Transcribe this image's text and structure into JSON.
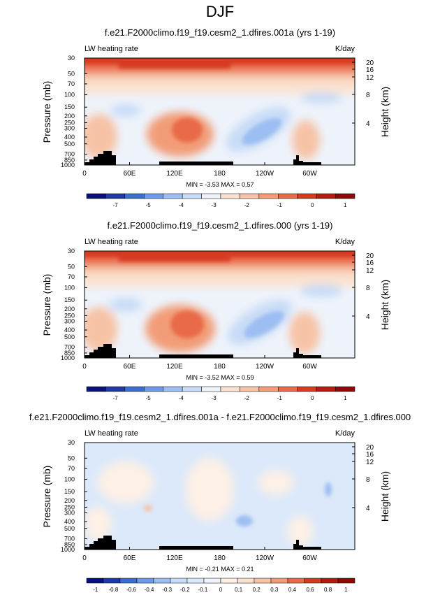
{
  "figure_title": "DJF",
  "panels": [
    {
      "title": "f.e21.F2000climo.f19_f19.cesm2_1.dfires.001a (yrs 1-19)",
      "left_label": "LW heating rate",
      "right_label": "K/day",
      "stats": "MIN = -3.53   MAX =  0.57",
      "cb_labels": [
        "-7",
        "-5",
        "-4",
        "-3",
        "-2",
        "-1",
        "0",
        "1"
      ]
    },
    {
      "title": "f.e21.F2000climo.f19_f19.cesm2_1.dfires.000 (yrs 1-19)",
      "left_label": "LW heating rate",
      "right_label": "K/day",
      "stats": "MIN = -3.52   MAX =  0.59",
      "cb_labels": [
        "-7",
        "-5",
        "-4",
        "-3",
        "-2",
        "-1",
        "0",
        "1"
      ]
    },
    {
      "title": "f.e21.F2000climo.f19_f19.cesm2_1.dfires.001a - f.e21.F2000climo.f19_f19.cesm2_1.dfires.000",
      "left_label": "LW heating rate",
      "right_label": "K/day",
      "stats": "MIN = -0.21   MAX =  0.21",
      "cb_labels": [
        "-1",
        "-0.8",
        "-0.6",
        "-0.4",
        "-0.3",
        "-0.2",
        "-0.1",
        "0",
        "0.1",
        "0.2",
        "0.3",
        "0.4",
        "0.6",
        "0.8",
        "1"
      ]
    }
  ],
  "chart_data": {
    "type": "heatmap",
    "ylabel": "Pressure (mb)",
    "y2label": "Height (km)",
    "x_ticks": [
      "0",
      "60E",
      "120E",
      "180",
      "120W",
      "60W"
    ],
    "y_ticks": [
      "30",
      "50",
      "70",
      "100",
      "150",
      "200",
      "250",
      "300",
      "400",
      "500",
      "700",
      "850",
      "1000"
    ],
    "y_tick_values": [
      30,
      50,
      70,
      100,
      150,
      200,
      250,
      300,
      400,
      500,
      700,
      850,
      1000
    ],
    "y2_ticks": [
      "20",
      "16",
      "12",
      "8",
      "4"
    ],
    "ylim": [
      1000,
      30
    ],
    "xlim": [
      0,
      360
    ],
    "colors_main": [
      "#08107a",
      "#1f3aa6",
      "#3a6fd0",
      "#6c9ae8",
      "#9cbef2",
      "#c7dcf7",
      "#eef3fb",
      "#fbe2d0",
      "#f7c3a6",
      "#f29c77",
      "#e96a4a",
      "#d63b21",
      "#b71a10",
      "#8e0906"
    ],
    "colors_diff": [
      "#08107a",
      "#1f3aa6",
      "#3a6fd0",
      "#6c9ae8",
      "#9cbef2",
      "#c7dcf7",
      "#dce9fa",
      "#eef3fb",
      "#fdf0e6",
      "#fbe2d0",
      "#f7c3a6",
      "#f29c77",
      "#e96a4a",
      "#d63b21",
      "#b71a10",
      "#8e0906"
    ]
  }
}
